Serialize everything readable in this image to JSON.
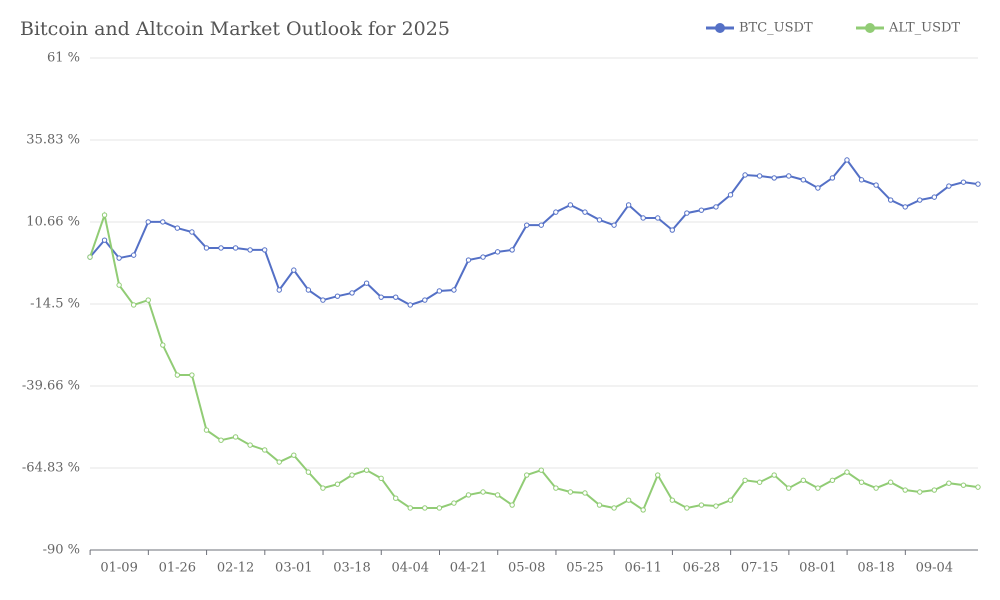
{
  "chart_data": {
    "type": "line",
    "title": "Bitcoin and Altcoin Market Outlook for 2025",
    "categories": [
      null,
      null,
      "01-09",
      null,
      null,
      null,
      "01-26",
      null,
      null,
      null,
      "02-12",
      null,
      null,
      null,
      "03-01",
      null,
      null,
      null,
      "03-18",
      null,
      null,
      null,
      "04-04",
      null,
      null,
      null,
      "04-21",
      null,
      null,
      null,
      "05-08",
      null,
      null,
      null,
      "05-25",
      null,
      null,
      null,
      "06-11",
      null,
      null,
      null,
      "06-28",
      null,
      null,
      null,
      "07-15",
      null,
      null,
      null,
      "08-01",
      null,
      null,
      null,
      "08-18",
      null,
      null,
      null,
      "09-04",
      null,
      null,
      null
    ],
    "series": [
      {
        "name": "BTC_USDT",
        "color": "#5470c6",
        "values": [
          -0.1,
          5.1,
          -0.4,
          0.5,
          10.7,
          10.7,
          8.8,
          7.6,
          2.7,
          2.7,
          2.7,
          2.1,
          2.1,
          -10.2,
          -4.1,
          -10.2,
          -13.3,
          -12.1,
          -11.1,
          -8.1,
          -12.4,
          -12.4,
          -14.8,
          -13.3,
          -10.5,
          -10.2,
          -1.0,
          -0.1,
          1.5,
          2.1,
          9.7,
          9.7,
          13.7,
          15.9,
          13.7,
          11.3,
          9.7,
          15.9,
          11.9,
          11.9,
          8.2,
          13.4,
          14.3,
          15.3,
          19.0,
          25.1,
          24.8,
          24.2,
          24.8,
          23.6,
          21.1,
          24.2,
          29.7,
          23.6,
          22.0,
          17.4,
          15.3,
          17.4,
          18.3,
          21.7,
          22.9,
          22.3
        ]
      },
      {
        "name": "ALT_USDT",
        "color": "#91cc75",
        "values": [
          -0.1,
          12.8,
          -8.7,
          -14.8,
          -13.3,
          -27.1,
          -36.3,
          -36.3,
          -53.2,
          -56.3,
          -55.3,
          -57.8,
          -59.3,
          -63.0,
          -60.9,
          -66.1,
          -71.0,
          -69.8,
          -67.0,
          -65.5,
          -68.0,
          -74.1,
          -77.1,
          -77.1,
          -77.1,
          -75.6,
          -73.1,
          -72.2,
          -73.1,
          -76.2,
          -67.0,
          -65.5,
          -71.0,
          -72.2,
          -72.5,
          -76.2,
          -77.1,
          -74.7,
          -77.7,
          -67.0,
          -74.7,
          -77.1,
          -76.2,
          -76.5,
          -74.7,
          -68.6,
          -69.2,
          -67.0,
          -71.0,
          -68.6,
          -71.0,
          -68.6,
          -66.1,
          -69.2,
          -71.0,
          -69.2,
          -71.6,
          -72.2,
          -71.6,
          -69.5,
          -70.1,
          -70.7
        ]
      }
    ],
    "ylim": [
      -90,
      61
    ],
    "yticks": [
      {
        "value": -90,
        "label": "-90 %"
      },
      {
        "value": -64.83,
        "label": "-64.83 %"
      },
      {
        "value": -39.66,
        "label": "-39.66 %"
      },
      {
        "value": -14.5,
        "label": "-14.5 %"
      },
      {
        "value": 10.66,
        "label": "10.66 %"
      },
      {
        "value": 35.83,
        "label": "35.83 %"
      },
      {
        "value": 61,
        "label": "61 %"
      }
    ],
    "grid": true,
    "legend": "top-right"
  }
}
